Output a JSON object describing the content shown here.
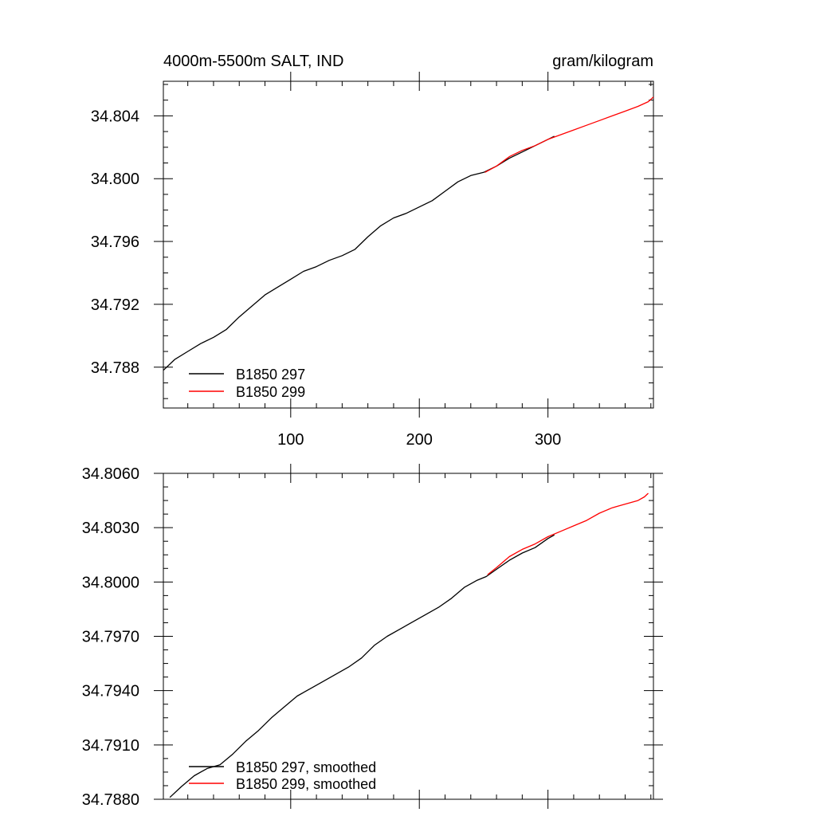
{
  "chart_data": [
    {
      "type": "line",
      "title": "4000m-5500m SALT, IND",
      "units": "gram/kilogram",
      "xlim": [
        1,
        382
      ],
      "ylim": [
        34.7854,
        34.8062
      ],
      "x_ticks": [
        100,
        200,
        300
      ],
      "x_ticks_shown": [
        "100",
        "200",
        "300"
      ],
      "y_ticks": [
        34.788,
        34.792,
        34.796,
        34.8,
        34.804
      ],
      "y_ticks_shown": [
        "34.788",
        "34.792",
        "34.796",
        "34.800",
        "34.804"
      ],
      "legend_placement": "bottom-left",
      "series": [
        {
          "name": "B1850 297",
          "color": "#000000",
          "x": [
            1,
            10,
            20,
            30,
            40,
            50,
            60,
            70,
            80,
            90,
            100,
            110,
            120,
            130,
            140,
            150,
            160,
            170,
            180,
            190,
            200,
            210,
            220,
            230,
            240,
            250,
            260,
            270,
            280,
            290,
            300,
            305
          ],
          "y": [
            34.7878,
            34.7885,
            34.789,
            34.7895,
            34.7899,
            34.7904,
            34.7912,
            34.7919,
            34.7926,
            34.7931,
            34.7936,
            34.7941,
            34.7944,
            34.7948,
            34.7951,
            34.7955,
            34.7963,
            34.797,
            34.7975,
            34.7978,
            34.7982,
            34.7986,
            34.7992,
            34.7998,
            34.8002,
            34.8004,
            34.8008,
            34.8013,
            34.8017,
            34.8021,
            34.8025,
            34.8027
          ]
        },
        {
          "name": "B1850 299",
          "color": "#ff0000",
          "x": [
            251,
            260,
            270,
            280,
            290,
            300,
            310,
            320,
            330,
            340,
            350,
            360,
            370,
            378,
            382
          ],
          "y": [
            34.8004,
            34.8008,
            34.8014,
            34.8018,
            34.8021,
            34.8025,
            34.8028,
            34.8031,
            34.8034,
            34.8037,
            34.804,
            34.8043,
            34.8046,
            34.8049,
            34.8052
          ]
        }
      ]
    },
    {
      "type": "line",
      "xlim": [
        1,
        382
      ],
      "ylim": [
        34.788,
        34.806
      ],
      "x_ticks": [
        100,
        200,
        300
      ],
      "y_ticks": [
        34.788,
        34.791,
        34.794,
        34.797,
        34.8,
        34.803,
        34.806
      ],
      "y_ticks_shown": [
        "34.7880",
        "34.7910",
        "34.7940",
        "34.7970",
        "34.8000",
        "34.8030",
        "34.8060"
      ],
      "legend_placement": "bottom-left",
      "series": [
        {
          "name": "B1850 297, smoothed",
          "color": "#000000",
          "x": [
            6,
            15,
            25,
            35,
            45,
            55,
            65,
            75,
            85,
            95,
            105,
            115,
            125,
            135,
            145,
            155,
            165,
            175,
            185,
            195,
            205,
            215,
            225,
            235,
            245,
            252,
            260,
            270,
            280,
            290,
            300,
            305
          ],
          "y": [
            34.7881,
            34.7887,
            34.7893,
            34.7897,
            34.7899,
            34.7905,
            34.7912,
            34.7918,
            34.7925,
            34.7931,
            34.7937,
            34.7941,
            34.7945,
            34.7949,
            34.7953,
            34.7958,
            34.7965,
            34.797,
            34.7974,
            34.7978,
            34.7982,
            34.7986,
            34.7991,
            34.7997,
            34.8001,
            34.8003,
            34.8007,
            34.8012,
            34.8016,
            34.8019,
            34.8024,
            34.8026
          ]
        },
        {
          "name": "B1850 299, smoothed",
          "color": "#ff0000",
          "x": [
            253,
            260,
            270,
            280,
            290,
            300,
            310,
            320,
            330,
            340,
            350,
            360,
            370,
            375,
            378
          ],
          "y": [
            34.8004,
            34.8008,
            34.8014,
            34.8018,
            34.8021,
            34.8025,
            34.8028,
            34.8031,
            34.8034,
            34.8038,
            34.8041,
            34.8043,
            34.8045,
            34.8047,
            34.8049
          ]
        }
      ]
    }
  ]
}
